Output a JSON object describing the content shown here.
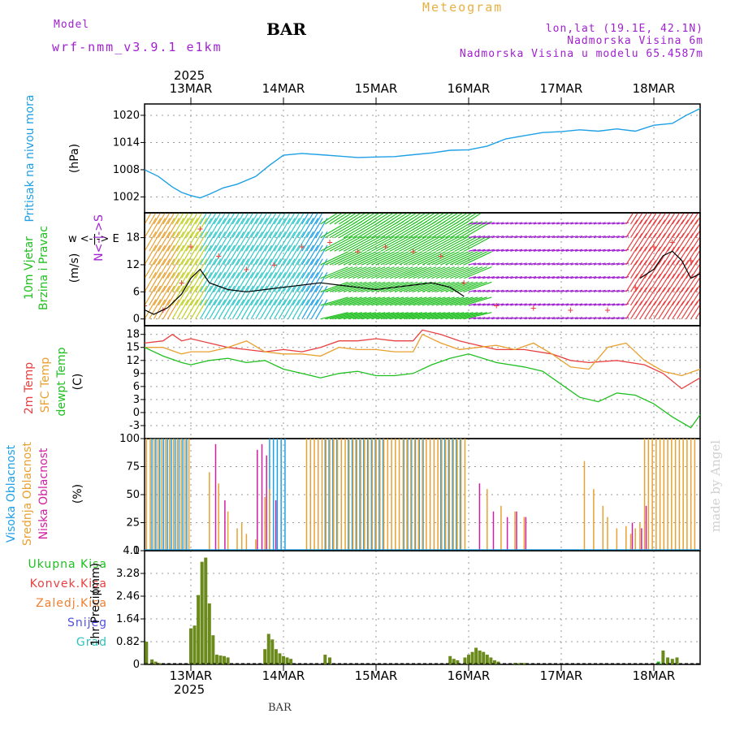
{
  "header": {
    "model_label": "Model",
    "model_name": "wrf-nmm_v3.9.1 e1km",
    "title": "BAR",
    "meteogram_label": "Meteogram",
    "location": "lon,lat (19.1E, 42.1N)",
    "elevation": "Nadmorska Visina 6m",
    "model_elevation": "Nadmorska Visina u modelu 65.4587m"
  },
  "credit": "made by Angel",
  "footer": "BAR",
  "colors": {
    "pressure": "#1ea0e6",
    "temp2m": "#e84040",
    "sfc_temp": "#e8a030",
    "dewpt": "#20c020",
    "high_cloud": "#1ea0e6",
    "mid_cloud": "#e8a030",
    "low_cloud": "#d020a0",
    "total_rain": "#6a8a1c",
    "gust": "#e84040",
    "wind_speed": "#000000",
    "wind_legend": "#a020d0"
  },
  "chart_data": [
    {
      "type": "line",
      "panel": "pressure",
      "title": "",
      "xlabel": "",
      "x_axis": {
        "year": "2025",
        "dates": [
          "13MAR",
          "14MAR",
          "15MAR",
          "16MAR",
          "17MAR",
          "18MAR"
        ],
        "start_day": 12.5,
        "end_day": 18.5
      },
      "ylabel_lines": [
        "Pritisak na nivou mora"
      ],
      "unit": "(hPa)",
      "yticks": [
        1002,
        1008,
        1014,
        1020
      ],
      "ylim": [
        998.5,
        1022.5
      ],
      "grid": true,
      "series": [
        {
          "color": "#1ea0e6",
          "x": [
            12.5,
            12.65,
            12.8,
            12.9,
            13.0,
            13.1,
            13.2,
            13.35,
            13.5,
            13.7,
            13.85,
            14.0,
            14.2,
            14.4,
            14.6,
            14.8,
            15.0,
            15.2,
            15.4,
            15.6,
            15.8,
            16.0,
            16.2,
            16.4,
            16.6,
            16.8,
            17.0,
            17.2,
            17.4,
            17.6,
            17.8,
            18.0,
            18.2,
            18.35,
            18.5
          ],
          "y": [
            1008,
            1006.5,
            1004.2,
            1003,
            1002.3,
            1001.8,
            1002.6,
            1004,
            1004.8,
            1006.5,
            1009,
            1011.2,
            1011.6,
            1011.3,
            1011,
            1010.7,
            1010.8,
            1010.9,
            1011.3,
            1011.7,
            1012.3,
            1012.4,
            1013.2,
            1014.8,
            1015.5,
            1016.2,
            1016.4,
            1016.8,
            1016.5,
            1017,
            1016.5,
            1017.8,
            1018.2,
            1020,
            1021.5
          ]
        }
      ]
    },
    {
      "type": "scatter",
      "panel": "wind",
      "title": "",
      "xlabel": "",
      "ylabel_lines": [
        "10m Vjetar",
        "Brzina i Pravac"
      ],
      "unit": "(m/s)",
      "compass_label": "w <-|-> E",
      "compass_vertical": "N<-|->S",
      "yticks": [
        0,
        6,
        12,
        18
      ],
      "ylim": [
        -1.5,
        23.5
      ],
      "grid": true,
      "wind_speed": {
        "x": [
          12.5,
          12.6,
          12.75,
          12.9,
          13.0,
          13.1,
          13.2,
          13.4,
          13.6,
          13.8,
          14.0,
          14.2,
          14.4,
          14.6,
          14.8,
          15.0,
          15.2,
          15.4,
          15.6,
          15.8,
          15.95
        ],
        "y": [
          2,
          1,
          2.5,
          5.5,
          9,
          11,
          8,
          6.5,
          6,
          6.5,
          7,
          7.5,
          8,
          7.5,
          7,
          6.5,
          7,
          7.5,
          8,
          7,
          5
        ]
      },
      "wind_speed_late": {
        "x": [
          17.85,
          18.0,
          18.1,
          18.2,
          18.3,
          18.4,
          18.5
        ],
        "y": [
          9,
          11,
          14,
          15,
          13,
          9,
          10
        ]
      },
      "gusts": {
        "x": [
          12.5,
          12.7,
          12.9,
          13.0,
          13.1,
          13.3,
          13.6,
          13.9,
          14.2,
          14.5,
          14.8,
          15.1,
          15.4,
          15.7,
          15.95,
          16.3,
          16.7,
          17.1,
          17.5,
          17.8,
          18.0,
          18.2,
          18.4
        ],
        "y": [
          3,
          2,
          8,
          16,
          20,
          14,
          11,
          12,
          16,
          17,
          15,
          16,
          15,
          14,
          8,
          3,
          2.5,
          2,
          2,
          7,
          16,
          17,
          13
        ]
      }
    },
    {
      "type": "line",
      "panel": "temperature",
      "title": "",
      "xlabel": "",
      "ylabel_lines": [
        "2m Temp",
        "SFC Temp",
        "dewpt Temp"
      ],
      "unit": "(C)",
      "yticks": [
        -3,
        0,
        3,
        6,
        9,
        12,
        15,
        18
      ],
      "ylim": [
        -6,
        20
      ],
      "grid": true,
      "series": [
        {
          "name": "2m Temp",
          "color": "#e84040",
          "x": [
            12.5,
            12.7,
            12.8,
            12.9,
            13.0,
            13.2,
            13.4,
            13.6,
            13.8,
            14.0,
            14.2,
            14.4,
            14.6,
            14.8,
            15.0,
            15.2,
            15.4,
            15.5,
            15.7,
            15.9,
            16.1,
            16.3,
            16.6,
            16.9,
            17.1,
            17.3,
            17.6,
            17.9,
            18.1,
            18.3,
            18.5
          ],
          "y": [
            16,
            16.5,
            18,
            16.5,
            17,
            16,
            15,
            14.5,
            14,
            14.5,
            14,
            15,
            16.5,
            16.5,
            17,
            16.5,
            16.5,
            19,
            18,
            16.5,
            15.5,
            14.5,
            14.5,
            13.5,
            12,
            11.5,
            12,
            11,
            9,
            5.5,
            8
          ]
        },
        {
          "name": "SFC Temp",
          "color": "#e8a030",
          "x": [
            12.5,
            12.7,
            12.9,
            13.0,
            13.2,
            13.4,
            13.6,
            13.8,
            14.0,
            14.2,
            14.4,
            14.6,
            14.8,
            15.0,
            15.2,
            15.4,
            15.5,
            15.7,
            15.9,
            16.1,
            16.3,
            16.5,
            16.7,
            16.9,
            17.1,
            17.3,
            17.5,
            17.7,
            17.9,
            18.1,
            18.3,
            18.5
          ],
          "y": [
            15,
            15,
            13.5,
            14,
            14,
            15,
            16.5,
            14,
            13.5,
            13.5,
            13,
            15,
            14.5,
            14.5,
            14,
            14,
            18,
            16,
            14.5,
            15,
            15.5,
            14.5,
            16,
            13.5,
            10.5,
            10,
            15,
            16,
            12,
            9.5,
            8.5,
            10
          ]
        },
        {
          "name": "dewpt Temp",
          "color": "#20c020",
          "x": [
            12.5,
            12.7,
            12.9,
            13.0,
            13.2,
            13.4,
            13.6,
            13.8,
            14.0,
            14.2,
            14.4,
            14.6,
            14.8,
            15.0,
            15.2,
            15.4,
            15.6,
            15.8,
            16.0,
            16.3,
            16.6,
            16.8,
            17.0,
            17.2,
            17.4,
            17.6,
            17.8,
            18.0,
            18.2,
            18.4,
            18.5
          ],
          "y": [
            15,
            13,
            11.5,
            11,
            12,
            12.5,
            11.5,
            12,
            10,
            9,
            8,
            9,
            9.5,
            8.5,
            8.5,
            9,
            11,
            12.5,
            13.5,
            11.5,
            10.5,
            9.5,
            6.5,
            3.5,
            2.5,
            4.5,
            4,
            2,
            -1,
            -3.5,
            -0.5
          ]
        }
      ]
    },
    {
      "type": "bar",
      "panel": "cloud",
      "title": "",
      "xlabel": "",
      "ylabel_lines": [
        "Visoka Oblacnost",
        "Srednja Oblacnost",
        "Niska Oblacnost"
      ],
      "unit": "(%)",
      "yticks": [
        0,
        25,
        50,
        75,
        100
      ],
      "ylim": [
        0,
        100
      ],
      "grid": true,
      "segments": [
        {
          "name": "Visoka Oblacnost",
          "color": "#1ea0e6",
          "ranges": [
            [
              12.58,
              12.98,
              100
            ],
            [
              13.85,
              14.02,
              100
            ],
            [
              14.45,
              14.58,
              100
            ],
            [
              14.7,
              15.1,
              100
            ],
            [
              15.3,
              15.55,
              100
            ],
            [
              15.7,
              15.95,
              100
            ]
          ]
        },
        {
          "name": "Srednja Oblacnost",
          "color": "#e8a030",
          "ranges": [
            [
              12.52,
              13.0,
              100
            ],
            [
              14.25,
              16.0,
              100
            ],
            [
              17.9,
              18.45,
              100
            ]
          ]
        }
      ],
      "mid_bars": {
        "x": [
          13.2,
          13.3,
          13.4,
          13.5,
          13.55,
          13.6,
          13.7,
          13.8,
          13.85,
          16.2,
          16.35,
          16.5,
          16.6,
          17.25,
          17.35,
          17.45,
          17.5,
          17.6,
          17.7,
          17.75,
          17.8,
          17.85
        ],
        "y": [
          70,
          60,
          35,
          20,
          25,
          15,
          10,
          48,
          55,
          55,
          40,
          35,
          30,
          80,
          55,
          40,
          30,
          20,
          22,
          15,
          20,
          25
        ]
      },
      "low_bars": {
        "x": [
          13.25,
          13.35,
          13.7,
          13.75,
          13.8,
          13.9,
          16.1,
          16.25,
          16.4,
          16.5,
          16.6,
          17.75,
          17.85,
          17.9
        ],
        "y": [
          95,
          45,
          90,
          95,
          85,
          45,
          60,
          35,
          30,
          35,
          30,
          25,
          20,
          40
        ]
      }
    },
    {
      "type": "bar",
      "panel": "precip",
      "title": "",
      "xlabel": "",
      "ylabel_lines": [
        "1hr Precip"
      ],
      "unit": "(mm)",
      "yticks": [
        0,
        0.82,
        1.64,
        2.46,
        3.28,
        4.1
      ],
      "ylim": [
        0,
        4.1
      ],
      "grid": true,
      "legend": [
        "Ukupna Kisa",
        "Konvek.Kisa",
        "Zaledj.Kisa",
        "Snijeg",
        "Grad"
      ],
      "legend_colors": [
        "#20c020",
        "#e84040",
        "#f08030",
        "#5050e0",
        "#30c0c0"
      ],
      "x": [
        12.52,
        12.58,
        12.62,
        12.66,
        13.0,
        13.04,
        13.08,
        13.12,
        13.16,
        13.2,
        13.24,
        13.28,
        13.32,
        13.36,
        13.4,
        13.8,
        13.84,
        13.88,
        13.92,
        13.96,
        14.0,
        14.04,
        14.08,
        14.45,
        14.5,
        15.8,
        15.84,
        15.88,
        15.96,
        16.0,
        16.04,
        16.08,
        16.12,
        16.16,
        16.2,
        16.24,
        16.28,
        16.32,
        16.5,
        16.55,
        16.6,
        18.05,
        18.1,
        18.15,
        18.2,
        18.25
      ],
      "values": [
        0.82,
        0.18,
        0.1,
        0.05,
        1.3,
        1.4,
        2.5,
        3.7,
        3.85,
        2.2,
        1.05,
        0.35,
        0.32,
        0.3,
        0.25,
        0.55,
        1.1,
        0.9,
        0.55,
        0.4,
        0.3,
        0.25,
        0.2,
        0.35,
        0.25,
        0.3,
        0.2,
        0.15,
        0.25,
        0.35,
        0.45,
        0.6,
        0.5,
        0.45,
        0.35,
        0.25,
        0.15,
        0.1,
        0.05,
        0.05,
        0.05,
        0.1,
        0.5,
        0.25,
        0.2,
        0.25
      ]
    }
  ]
}
